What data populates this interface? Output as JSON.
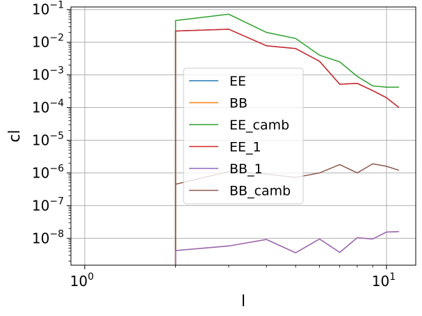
{
  "chart_data": {
    "type": "line",
    "xscale": "log",
    "yscale": "log",
    "xlabel": "l",
    "ylabel": "cl",
    "xlim": [
      0.9,
      12.5
    ],
    "ylim": [
      1.5e-09,
      0.12
    ],
    "grid": true,
    "legend_position": "center-right",
    "xticks": [
      {
        "value": 1,
        "label": "10^0"
      },
      {
        "value": 10,
        "label": "10^1"
      }
    ],
    "yticks": [
      {
        "value": 1e-08,
        "label": "10^−8"
      },
      {
        "value": 1e-07,
        "label": "10^−7"
      },
      {
        "value": 1e-06,
        "label": "10^−6"
      },
      {
        "value": 1e-05,
        "label": "10^−5"
      },
      {
        "value": 0.0001,
        "label": "10^−4"
      },
      {
        "value": 0.001,
        "label": "10^−3"
      },
      {
        "value": 0.01,
        "label": "10^−2"
      },
      {
        "value": 0.1,
        "label": "10^−1"
      }
    ],
    "x": [
      2,
      3,
      4,
      5,
      6,
      7,
      8,
      9,
      10,
      11
    ],
    "series": [
      {
        "name": "EE",
        "color": "#1f77b4",
        "values": [
          0.022,
          0.025,
          0.0078,
          0.0064,
          0.0026,
          0.00052,
          0.00055,
          0.00033,
          0.0002,
          0.0001
        ],
        "drop_from": 2
      },
      {
        "name": "BB",
        "color": "#ff7f0e",
        "values": [
          4.2e-09,
          5.8e-09,
          9.2e-09,
          3.6e-09,
          9.5e-09,
          3.7e-09,
          1.04e-08,
          9.5e-09,
          1.55e-08,
          1.6e-08
        ],
        "drop_from": 2
      },
      {
        "name": "EE_camb",
        "color": "#2ca02c",
        "values": [
          0.046,
          0.072,
          0.02,
          0.013,
          0.004,
          0.0025,
          0.0009,
          0.00046,
          0.00042,
          0.00042
        ],
        "drop_from": 2
      },
      {
        "name": "EE_1",
        "color": "#d62728",
        "values": [
          0.022,
          0.025,
          0.0078,
          0.0064,
          0.0026,
          0.00052,
          0.00055,
          0.00033,
          0.0002,
          0.0001
        ],
        "drop_from": 2
      },
      {
        "name": "BB_1",
        "color": "#9467bd",
        "values": [
          4.2e-09,
          5.8e-09,
          9.2e-09,
          3.6e-09,
          9.5e-09,
          3.7e-09,
          1.04e-08,
          9.5e-09,
          1.55e-08,
          1.6e-08
        ],
        "drop_from": 2
      },
      {
        "name": "BB_camb",
        "color": "#8c564b",
        "values": [
          4.5e-07,
          1.1e-06,
          9.2e-07,
          7.3e-07,
          1e-06,
          1.8e-06,
          1e-06,
          1.9e-06,
          1.6e-06,
          1.2e-06
        ],
        "drop_from": null
      }
    ]
  }
}
